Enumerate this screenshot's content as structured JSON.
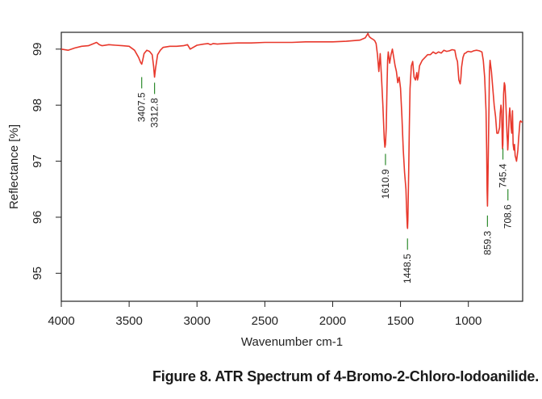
{
  "caption": "Figure 8. ATR Spectrum of 4-Bromo-2-Chloro-Iodoanilide.",
  "chart_data": {
    "type": "line",
    "title": "",
    "xlabel": "Wavenumber cm-1",
    "ylabel": "Reflectance [%]",
    "xlim": [
      4000,
      600
    ],
    "ylim": [
      94.5,
      99.3
    ],
    "x_ticks": [
      4000,
      3500,
      3000,
      2500,
      2000,
      1500,
      1000
    ],
    "x_tick_labels": [
      "4000",
      "3500",
      "3000",
      "2500",
      "2000",
      "1500",
      "1000"
    ],
    "y_ticks": [
      95,
      96,
      97,
      98,
      99
    ],
    "y_tick_labels": [
      "95",
      "96",
      "97",
      "98",
      "99"
    ],
    "line_color": "#e8382c",
    "marker_color": "#2e8b2e",
    "series": [
      {
        "x": [
          4000,
          3950,
          3900,
          3850,
          3800,
          3760,
          3740,
          3720,
          3700,
          3650,
          3600,
          3550,
          3500,
          3460,
          3430,
          3415,
          3407.5,
          3400,
          3390,
          3370,
          3350,
          3330,
          3320,
          3312.8,
          3305,
          3290,
          3270,
          3250,
          3200,
          3150,
          3100,
          3070,
          3050,
          3000,
          2950,
          2920,
          2900,
          2880,
          2850,
          2800,
          2700,
          2600,
          2500,
          2400,
          2300,
          2200,
          2100,
          2000,
          1900,
          1800,
          1760,
          1740,
          1730,
          1720,
          1700,
          1690,
          1680,
          1670,
          1660,
          1650,
          1640,
          1630,
          1620,
          1615,
          1610.9,
          1605,
          1600,
          1595,
          1590,
          1580,
          1570,
          1560,
          1550,
          1540,
          1530,
          1520,
          1510,
          1500,
          1490,
          1480,
          1470,
          1460,
          1455,
          1450,
          1448.5,
          1446,
          1440,
          1435,
          1430,
          1420,
          1410,
          1400,
          1390,
          1380,
          1375,
          1370,
          1360,
          1340,
          1320,
          1300,
          1280,
          1260,
          1240,
          1220,
          1200,
          1180,
          1160,
          1140,
          1120,
          1100,
          1090,
          1080,
          1070,
          1060,
          1055,
          1050,
          1040,
          1030,
          1020,
          1010,
          1000,
          980,
          960,
          940,
          920,
          900,
          890,
          880,
          870,
          865,
          862,
          859.3,
          856,
          852,
          848,
          845,
          840,
          830,
          820,
          810,
          800,
          790,
          780,
          770,
          765,
          760,
          755,
          752,
          750,
          748,
          745.4,
          743,
          740,
          735,
          730,
          725,
          720,
          715,
          712,
          710,
          708.6,
          706,
          703,
          700,
          695,
          690,
          685,
          680,
          675,
          670,
          665,
          660,
          655,
          650,
          645,
          640,
          635,
          630,
          625,
          620,
          615,
          610,
          605,
          600
        ],
        "y": [
          99.0,
          98.98,
          99.02,
          99.05,
          99.06,
          99.1,
          99.12,
          99.08,
          99.06,
          99.08,
          99.07,
          99.06,
          99.05,
          98.98,
          98.85,
          98.76,
          98.73,
          98.8,
          98.92,
          98.98,
          98.96,
          98.9,
          98.7,
          98.5,
          98.66,
          98.9,
          98.98,
          99.03,
          99.05,
          99.05,
          99.06,
          99.08,
          99.0,
          99.07,
          99.09,
          99.1,
          99.08,
          99.1,
          99.09,
          99.1,
          99.11,
          99.11,
          99.12,
          99.12,
          99.12,
          99.13,
          99.13,
          99.13,
          99.14,
          99.16,
          99.2,
          99.28,
          99.22,
          99.2,
          99.17,
          99.15,
          99.1,
          98.9,
          98.6,
          98.92,
          98.5,
          98.0,
          97.4,
          97.25,
          97.3,
          97.6,
          98.3,
          98.8,
          98.95,
          98.75,
          98.9,
          99.0,
          98.85,
          98.7,
          98.6,
          98.4,
          98.5,
          98.3,
          97.8,
          97.2,
          96.8,
          96.5,
          96.1,
          95.83,
          95.8,
          95.95,
          96.8,
          97.6,
          98.3,
          98.7,
          98.78,
          98.5,
          98.45,
          98.58,
          98.45,
          98.5,
          98.7,
          98.8,
          98.85,
          98.9,
          98.9,
          98.95,
          98.92,
          98.95,
          98.93,
          98.98,
          98.96,
          98.97,
          98.99,
          98.98,
          98.85,
          98.78,
          98.45,
          98.38,
          98.5,
          98.68,
          98.85,
          98.92,
          98.93,
          98.95,
          98.96,
          98.95,
          98.97,
          98.98,
          98.97,
          98.95,
          98.8,
          98.5,
          97.9,
          97.2,
          96.5,
          96.2,
          96.6,
          97.3,
          98.0,
          98.6,
          98.8,
          98.6,
          98.3,
          98.0,
          97.8,
          97.5,
          97.5,
          97.6,
          97.85,
          98.0,
          97.9,
          97.6,
          97.3,
          97.22,
          97.3,
          97.65,
          98.2,
          98.4,
          98.35,
          98.1,
          97.8,
          97.45,
          97.35,
          97.2,
          97.23,
          97.4,
          97.6,
          97.8,
          97.95,
          97.8,
          97.6,
          97.5,
          97.9,
          97.3,
          97.2,
          97.3,
          97.1,
          97.05,
          97.0,
          97.1,
          97.2,
          97.4,
          97.55,
          97.7,
          97.72,
          97.7,
          97.7,
          97.7
        ]
      }
    ],
    "annotations": [
      {
        "x": 3407.5,
        "label": "3407.5",
        "y": 98.4
      },
      {
        "x": 3312.8,
        "label": "3312.8",
        "y": 98.3
      },
      {
        "x": 1610.9,
        "label": "1610.9",
        "y": 97.03
      },
      {
        "x": 1448.5,
        "label": "1448.5",
        "y": 95.52
      },
      {
        "x": 859.3,
        "label": "859.3",
        "y": 95.93
      },
      {
        "x": 745.4,
        "label": "745.4",
        "y": 97.13
      },
      {
        "x": 708.6,
        "label": "708.6",
        "y": 96.4
      }
    ],
    "grid": false,
    "legend": "none"
  }
}
